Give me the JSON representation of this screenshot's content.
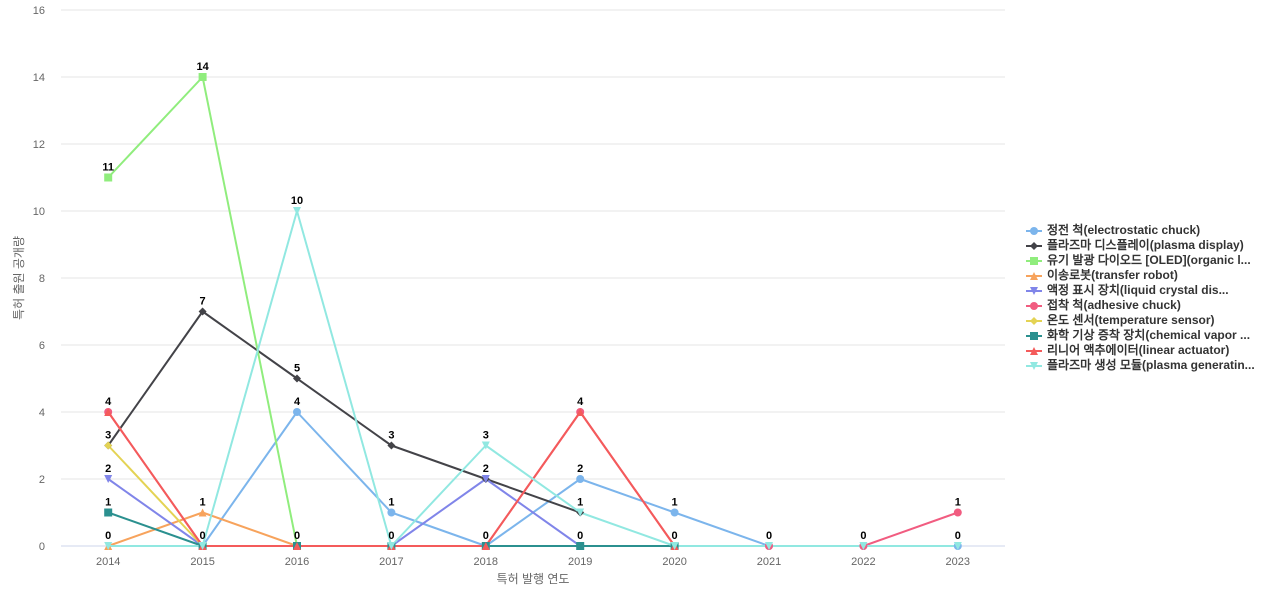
{
  "chart_data": {
    "type": "line",
    "title": "",
    "xlabel": "특허 발행 연도",
    "ylabel": "특허 출원 공개량",
    "ylim": [
      0,
      16
    ],
    "yticks": [
      0,
      2,
      4,
      6,
      8,
      10,
      12,
      14,
      16
    ],
    "x": [
      "2014",
      "2015",
      "2016",
      "2017",
      "2018",
      "2019",
      "2020",
      "2021",
      "2022",
      "2023"
    ],
    "grid": true,
    "legend_position": "right",
    "series": [
      {
        "name": "정전 척(electrostatic chuck)",
        "legend_label": "정전 척(electrostatic chuck)",
        "color": "#7cb5ec",
        "marker": "circle",
        "points": [
          [
            2015,
            0
          ],
          [
            2016,
            4
          ],
          [
            2017,
            1
          ],
          [
            2018,
            0
          ],
          [
            2019,
            2
          ],
          [
            2020,
            1
          ],
          [
            2021,
            0
          ],
          [
            2022,
            0
          ],
          [
            2023,
            0
          ]
        ]
      },
      {
        "name": "플라즈마 디스플레이(plasma display)",
        "legend_label": "플라즈마 디스플레이(plasma display)",
        "color": "#434348",
        "marker": "diamond",
        "points": [
          [
            2014,
            3
          ],
          [
            2015,
            7
          ],
          [
            2016,
            5
          ],
          [
            2017,
            3
          ],
          [
            2018,
            2
          ],
          [
            2019,
            1
          ]
        ]
      },
      {
        "name": "유기 발광 다이오드 [OLED](organic light-emitting diode)",
        "legend_label": "유기 발광 다이오드 [OLED](organic l...",
        "color": "#90ed7d",
        "marker": "square",
        "points": [
          [
            2014,
            11
          ],
          [
            2015,
            14
          ],
          [
            2016,
            0
          ]
        ]
      },
      {
        "name": "이송로봇(transfer robot)",
        "legend_label": "이송로봇(transfer robot)",
        "color": "#f7a35c",
        "marker": "triangle",
        "points": [
          [
            2014,
            0
          ],
          [
            2015,
            1
          ],
          [
            2016,
            0
          ]
        ]
      },
      {
        "name": "액정 표시 장치(liquid crystal display)",
        "legend_label": "액정 표시 장치(liquid crystal dis...",
        "color": "#8085e9",
        "marker": "triangle-down",
        "points": [
          [
            2014,
            2
          ],
          [
            2015,
            0
          ],
          [
            2016,
            0
          ],
          [
            2017,
            0
          ],
          [
            2018,
            2
          ],
          [
            2019,
            0
          ]
        ]
      },
      {
        "name": "접착 척(adhesive chuck)",
        "legend_label": "접착 척(adhesive chuck)",
        "color": "#f15c80",
        "marker": "circle",
        "points": [
          [
            2014,
            4
          ],
          [
            2015,
            0
          ],
          [
            2016,
            0
          ],
          [
            2017,
            0
          ],
          [
            2018,
            0
          ],
          [
            2019,
            4
          ],
          [
            2020,
            0
          ],
          [
            2021,
            0
          ],
          [
            2022,
            0
          ],
          [
            2023,
            1
          ]
        ]
      },
      {
        "name": "온도 센서(temperature sensor)",
        "legend_label": "온도 센서(temperature sensor)",
        "color": "#e4d354",
        "marker": "diamond",
        "points": [
          [
            2014,
            3
          ],
          [
            2015,
            0
          ]
        ]
      },
      {
        "name": "화학 기상 증착 장치(chemical vapor deposition)",
        "legend_label": "화학 기상 증착 장치(chemical vapor ...",
        "color": "#2b908f",
        "marker": "square",
        "points": [
          [
            2014,
            1
          ],
          [
            2015,
            0
          ],
          [
            2016,
            0
          ],
          [
            2017,
            0
          ],
          [
            2018,
            0
          ],
          [
            2019,
            0
          ],
          [
            2020,
            0
          ]
        ]
      },
      {
        "name": "리니어 액추에이터(linear actuator)",
        "legend_label": "리니어 액추에이터(linear actuator)",
        "color": "#f45b5b",
        "marker": "triangle",
        "points": [
          [
            2014,
            4
          ],
          [
            2015,
            0
          ],
          [
            2016,
            0
          ],
          [
            2017,
            0
          ],
          [
            2018,
            0
          ],
          [
            2019,
            4
          ],
          [
            2020,
            0
          ]
        ]
      },
      {
        "name": "플라즈마 생성 모듈(plasma generating module)",
        "legend_label": "플라즈마 생성 모듈(plasma generatin...",
        "color": "#91e8e1",
        "marker": "triangle-down",
        "points": [
          [
            2014,
            0
          ],
          [
            2015,
            0
          ],
          [
            2016,
            10
          ],
          [
            2017,
            0
          ],
          [
            2018,
            3
          ],
          [
            2019,
            1
          ],
          [
            2020,
            0
          ],
          [
            2021,
            0
          ],
          [
            2022,
            0
          ],
          [
            2023,
            0
          ]
        ]
      }
    ],
    "data_labels": [
      {
        "x": 2014,
        "label": "11",
        "value": 11
      },
      {
        "x": 2014,
        "label": "4",
        "value": 4
      },
      {
        "x": 2014,
        "label": "3",
        "value": 3
      },
      {
        "x": 2014,
        "label": "2",
        "value": 2
      },
      {
        "x": 2014,
        "label": "1",
        "value": 1
      },
      {
        "x": 2014,
        "label": "0",
        "value": 0
      },
      {
        "x": 2015,
        "label": "14",
        "value": 14
      },
      {
        "x": 2015,
        "label": "7",
        "value": 7
      },
      {
        "x": 2015,
        "label": "1",
        "value": 1
      },
      {
        "x": 2015,
        "label": "0",
        "value": 0
      },
      {
        "x": 2016,
        "label": "10",
        "value": 10
      },
      {
        "x": 2016,
        "label": "5",
        "value": 5
      },
      {
        "x": 2016,
        "label": "4",
        "value": 4
      },
      {
        "x": 2016,
        "label": "0",
        "value": 0
      },
      {
        "x": 2017,
        "label": "3",
        "value": 3
      },
      {
        "x": 2017,
        "label": "1",
        "value": 1
      },
      {
        "x": 2017,
        "label": "0",
        "value": 0
      },
      {
        "x": 2018,
        "label": "3",
        "value": 3
      },
      {
        "x": 2018,
        "label": "2",
        "value": 2
      },
      {
        "x": 2018,
        "label": "0",
        "value": 0
      },
      {
        "x": 2019,
        "label": "4",
        "value": 4
      },
      {
        "x": 2019,
        "label": "2",
        "value": 2
      },
      {
        "x": 2019,
        "label": "1",
        "value": 1
      },
      {
        "x": 2019,
        "label": "0",
        "value": 0
      },
      {
        "x": 2020,
        "label": "1",
        "value": 1
      },
      {
        "x": 2020,
        "label": "0",
        "value": 0
      },
      {
        "x": 2021,
        "label": "0",
        "value": 0
      },
      {
        "x": 2022,
        "label": "0",
        "value": 0
      },
      {
        "x": 2023,
        "label": "1",
        "value": 1
      },
      {
        "x": 2023,
        "label": "0",
        "value": 0
      }
    ]
  }
}
